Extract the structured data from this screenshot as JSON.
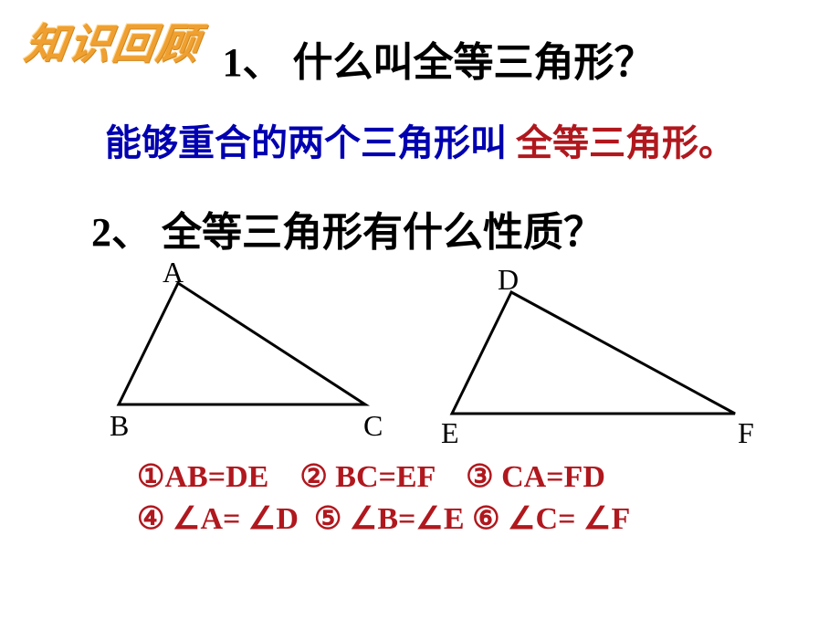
{
  "header": {
    "decorative_title": "知识回顾"
  },
  "q1": {
    "title": "1、 什么叫全等三角形？",
    "answer_part1": "能够重合的两个三角形叫 ",
    "answer_part2": "全等三角形。",
    "answer_color_part1": "#0000b0",
    "answer_color_part2": "#b0181e"
  },
  "q2": {
    "title": "2、 全等三角形有什么性质？"
  },
  "triangles": {
    "stroke_color": "#000000",
    "stroke_width": 3,
    "triangle1": {
      "vertices": {
        "A": [
          195,
          22
        ],
        "B": [
          130,
          155
        ],
        "C": [
          400,
          155
        ]
      },
      "labels": {
        "A": "A",
        "B": "B",
        "C": "C"
      },
      "label_pos": {
        "A": [
          178,
          -8
        ],
        "B": [
          120,
          160
        ],
        "C": [
          398,
          160
        ]
      }
    },
    "triangle2": {
      "vertices": {
        "D": [
          560,
          32
        ],
        "E": [
          495,
          165
        ],
        "F": [
          805,
          165
        ]
      },
      "labels": {
        "D": "D",
        "E": "E",
        "F": "F"
      },
      "label_pos": {
        "D": [
          545,
          0
        ],
        "E": [
          483,
          168
        ],
        "F": [
          808,
          168
        ]
      }
    },
    "label_fontsize": 32
  },
  "properties": {
    "line1": "①AB=DE    ② BC=EF    ③ CA=FD",
    "line2": "④ ∠A= ∠D  ⑤ ∠B=∠E ⑥ ∠C= ∠F",
    "color": "#b0181e",
    "fontsize": 34
  },
  "styling": {
    "background_color": "#ffffff",
    "body_font": "SimSun",
    "heading_fontsize": 44,
    "answer_fontsize": 40,
    "decorative_color": "#f0a030",
    "decorative_fontsize": 46
  }
}
